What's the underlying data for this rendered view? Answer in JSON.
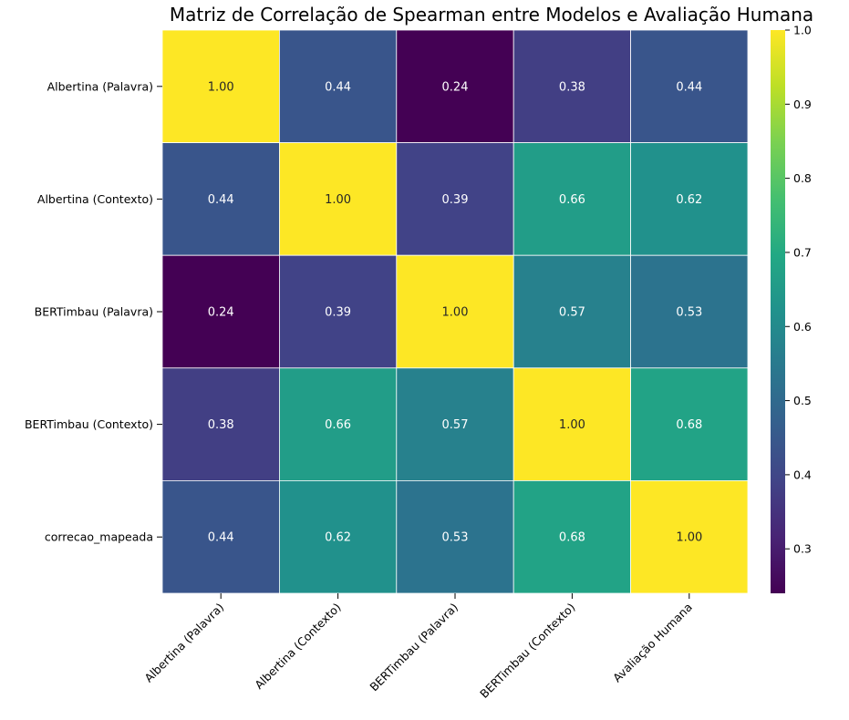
{
  "chart_data": {
    "type": "heatmap",
    "title": "Matriz de Correlação de Spearman entre Modelos e Avaliação Humana",
    "xlabel": "",
    "ylabel": "",
    "row_labels": [
      "Albertina (Palavra)",
      "Albertina (Contexto)",
      "BERTimbau (Palavra)",
      "BERTimbau (Contexto)",
      "correcao_mapeada"
    ],
    "col_labels": [
      "Albertina (Palavra)",
      "Albertina (Contexto)",
      "BERTimbau (Palavra)",
      "BERTimbau (Contexto)",
      "Avaliação Humana"
    ],
    "values": [
      [
        1.0,
        0.44,
        0.24,
        0.38,
        0.44
      ],
      [
        0.44,
        1.0,
        0.39,
        0.66,
        0.62
      ],
      [
        0.24,
        0.39,
        1.0,
        0.57,
        0.53
      ],
      [
        0.38,
        0.66,
        0.57,
        1.0,
        0.68
      ],
      [
        0.44,
        0.62,
        0.53,
        0.68,
        1.0
      ]
    ],
    "value_format": "0.00",
    "colormap": "viridis",
    "color_range": [
      0.24,
      1.0
    ],
    "colorbar_ticks": [
      "0.3",
      "0.4",
      "0.5",
      "0.6",
      "0.7",
      "0.8",
      "0.9",
      "1.0"
    ],
    "cell_border_color": "#ffffff",
    "legend": "colorbar-right"
  }
}
